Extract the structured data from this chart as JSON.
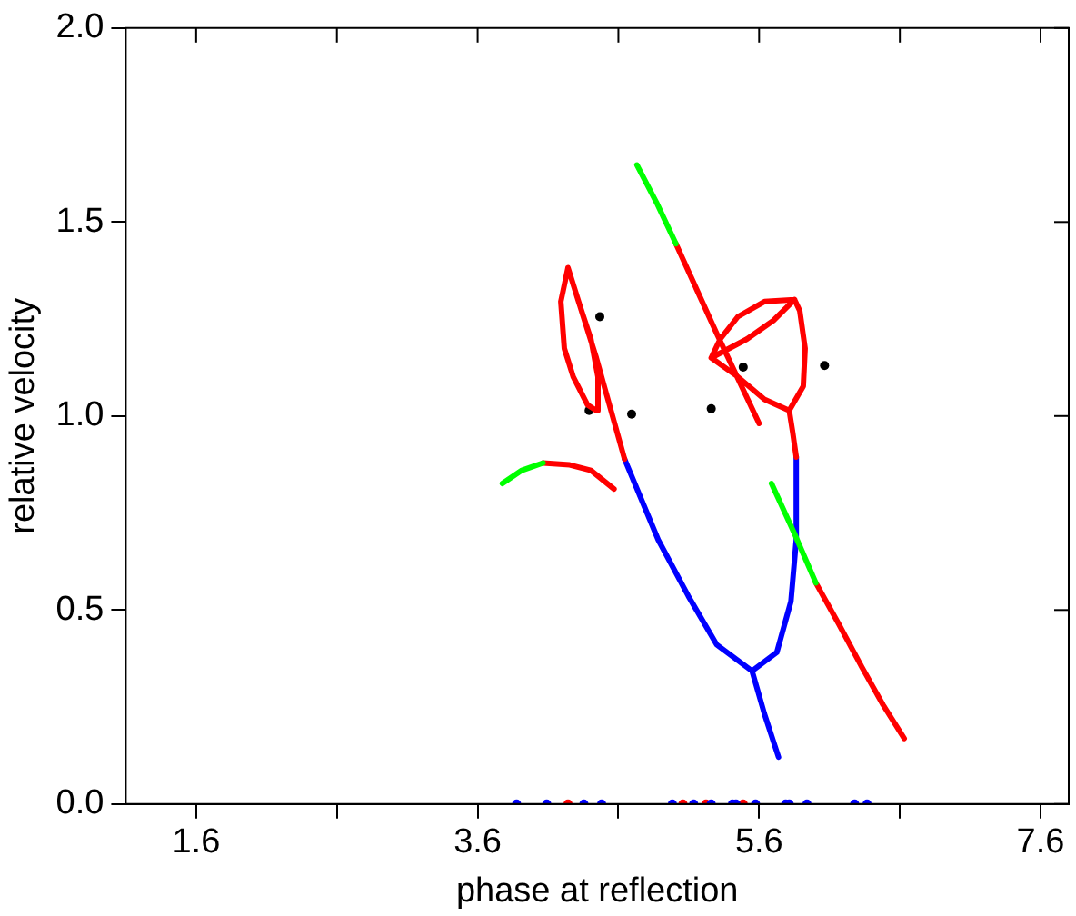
{
  "chart_data": {
    "type": "scatter",
    "xlabel": "phase at reflection",
    "ylabel": "relative velocity",
    "xlim": [
      1.1,
      7.8
    ],
    "ylim": [
      0,
      2
    ],
    "xticks": [
      1.6,
      {
        "value": 2.6,
        "label": null
      },
      3.6,
      {
        "value": 4.6,
        "label": null
      },
      5.6,
      {
        "value": 6.6,
        "label": null
      },
      7.6
    ],
    "yticks": [
      {
        "value": 0,
        "label": "0.0"
      },
      {
        "value": 0.5,
        "label": "0.5"
      },
      {
        "value": 1,
        "label": "1.0"
      },
      {
        "value": 1.5,
        "label": "1.5"
      },
      {
        "value": 2,
        "label": "2.0"
      }
    ],
    "grid": false,
    "legend": false,
    "series": [
      {
        "type": "line",
        "marker": "none",
        "color": "#00ff00",
        "x": [
          3.776,
          3.914,
          4.065,
          null,
          4.732,
          4.87,
          5.009,
          null,
          5.688,
          5.852,
          6.003
        ],
        "values": [
          0.826,
          0.86,
          0.879,
          null,
          1.647,
          1.551,
          1.444,
          null,
          0.826,
          0.696,
          0.57
        ]
      },
      {
        "type": "line",
        "marker": "none",
        "color": "#ff0000",
        "x": [
          4.065,
          4.254,
          4.405,
          4.569,
          null,
          5.009,
          5.298,
          5.6,
          null,
          6.003,
          6.166,
          6.33,
          6.48,
          6.631,
          null,
          4.644,
          4.443,
          4.242,
          4.191,
          4.216,
          4.279,
          4.38,
          4.443,
          4.455,
          4.405,
          4.317,
          4.242,
          null,
          5.864,
          5.839,
          5.814,
          5.914,
          5.927,
          5.889,
          5.852,
          5.638,
          5.449,
          5.323,
          5.26,
          5.512,
          5.701,
          5.852,
          null,
          5.26,
          5.449,
          5.638,
          5.814
        ],
        "values": [
          0.879,
          0.874,
          0.86,
          0.812,
          null,
          1.444,
          1.213,
          0.981,
          null,
          0.57,
          0.464,
          0.353,
          0.256,
          0.169,
          null,
          0.889,
          1.15,
          1.382,
          1.295,
          1.174,
          1.101,
          1.029,
          1.014,
          1.101,
          1.198,
          1.295,
          1.382,
          null,
          0.894,
          0.957,
          1.014,
          1.077,
          1.174,
          1.271,
          1.3,
          1.295,
          1.256,
          1.198,
          1.15,
          1.198,
          1.246,
          1.3,
          null,
          1.15,
          1.101,
          1.043,
          1.014
        ]
      },
      {
        "type": "line",
        "marker": "none",
        "color": "#0000ff",
        "x": [
          4.644,
          4.883,
          5.097,
          5.298,
          5.55,
          5.726,
          5.826,
          5.864,
          5.864,
          null,
          5.55,
          5.638,
          5.738
        ],
        "values": [
          0.889,
          0.681,
          0.536,
          0.411,
          0.343,
          0.391,
          0.522,
          0.681,
          0.894,
          null,
          0.343,
          0.232,
          0.121
        ]
      },
      {
        "type": "scatter",
        "marker": "circle",
        "color": "#000000",
        "x": [
          4.468,
          4.392,
          4.694,
          5.26,
          5.487,
          6.065
        ],
        "values": [
          1.256,
          1.014,
          1.005,
          1.019,
          1.126,
          1.13
        ]
      },
      {
        "type": "scatter",
        "marker": "circle",
        "color": "#0000ff",
        "x": [
          3.877,
          4.091,
          4.355,
          4.481,
          4.984,
          5.135,
          5.26,
          5.411,
          5.436,
          5.575,
          5.789,
          5.814,
          5.94,
          6.279,
          6.367
        ],
        "values": [
          0,
          0,
          0,
          0,
          0,
          0,
          0,
          0,
          0,
          0,
          0,
          0,
          0,
          0,
          0
        ]
      },
      {
        "type": "scatter",
        "marker": "circle",
        "color": "#ff0000",
        "x": [
          4.242,
          5.059,
          5.223,
          5.487
        ],
        "values": [
          0,
          0,
          0,
          0
        ]
      }
    ]
  }
}
